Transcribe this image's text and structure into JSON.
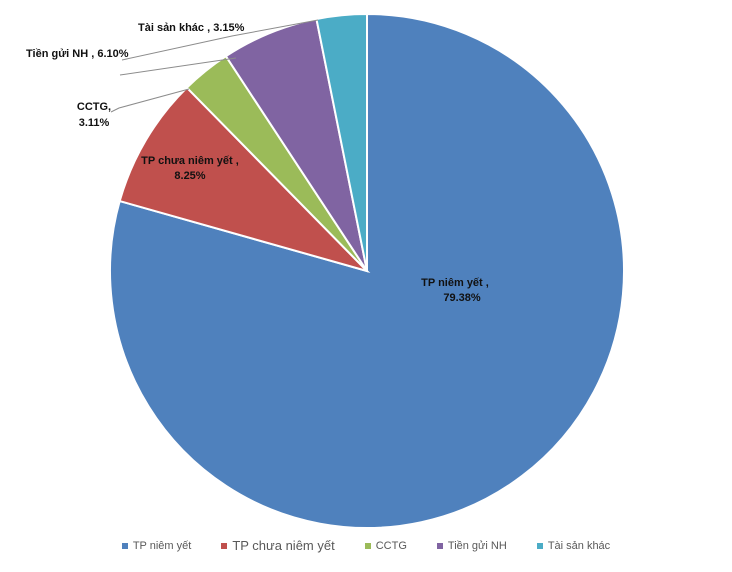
{
  "chart_data": {
    "type": "pie",
    "title": "",
    "start_angle_deg": 0,
    "direction": "clockwise",
    "series": [
      {
        "values": [
          79.38,
          8.25,
          3.11,
          6.1,
          3.15
        ]
      }
    ],
    "slices": [
      {
        "label": "TP niêm yết",
        "value": 79.38,
        "display_label": "TP niêm yết , 79.38%",
        "color": "#4F81BD"
      },
      {
        "label": "TP chưa niêm yết",
        "value": 8.25,
        "display_label": "TP chưa niêm yết , 8.25%",
        "color": "#C0504D"
      },
      {
        "label": "CCTG",
        "value": 3.11,
        "display_label": "CCTG, 3.11%",
        "color": "#9BBB59"
      },
      {
        "label": "Tiền gửi NH",
        "value": 6.1,
        "display_label": "Tiền gửi NH , 6.10%",
        "color": "#8064A2"
      },
      {
        "label": "Tài sản khác",
        "value": 3.15,
        "display_label": "Tài sản khác , 3.15%",
        "color": "#4BACC6"
      }
    ],
    "legend": [
      "TP niêm yết",
      "TP chưa niêm yết",
      "CCTG",
      "Tiền gửi NH",
      "Tài sản khác"
    ],
    "legend_position": "bottom"
  },
  "labels": {
    "tp_niem_yet_name": "TP niêm yết ,",
    "tp_niem_yet_pct": "79.38%",
    "tp_chua_name": "TP chưa niêm yết ,",
    "tp_chua_pct": "8.25%",
    "cctg_name": "CCTG,",
    "cctg_pct": "3.11%",
    "tien_gui": "Tiền gửi NH , 6.10%",
    "tai_san_khac": "Tài sản khác , 3.15%"
  }
}
